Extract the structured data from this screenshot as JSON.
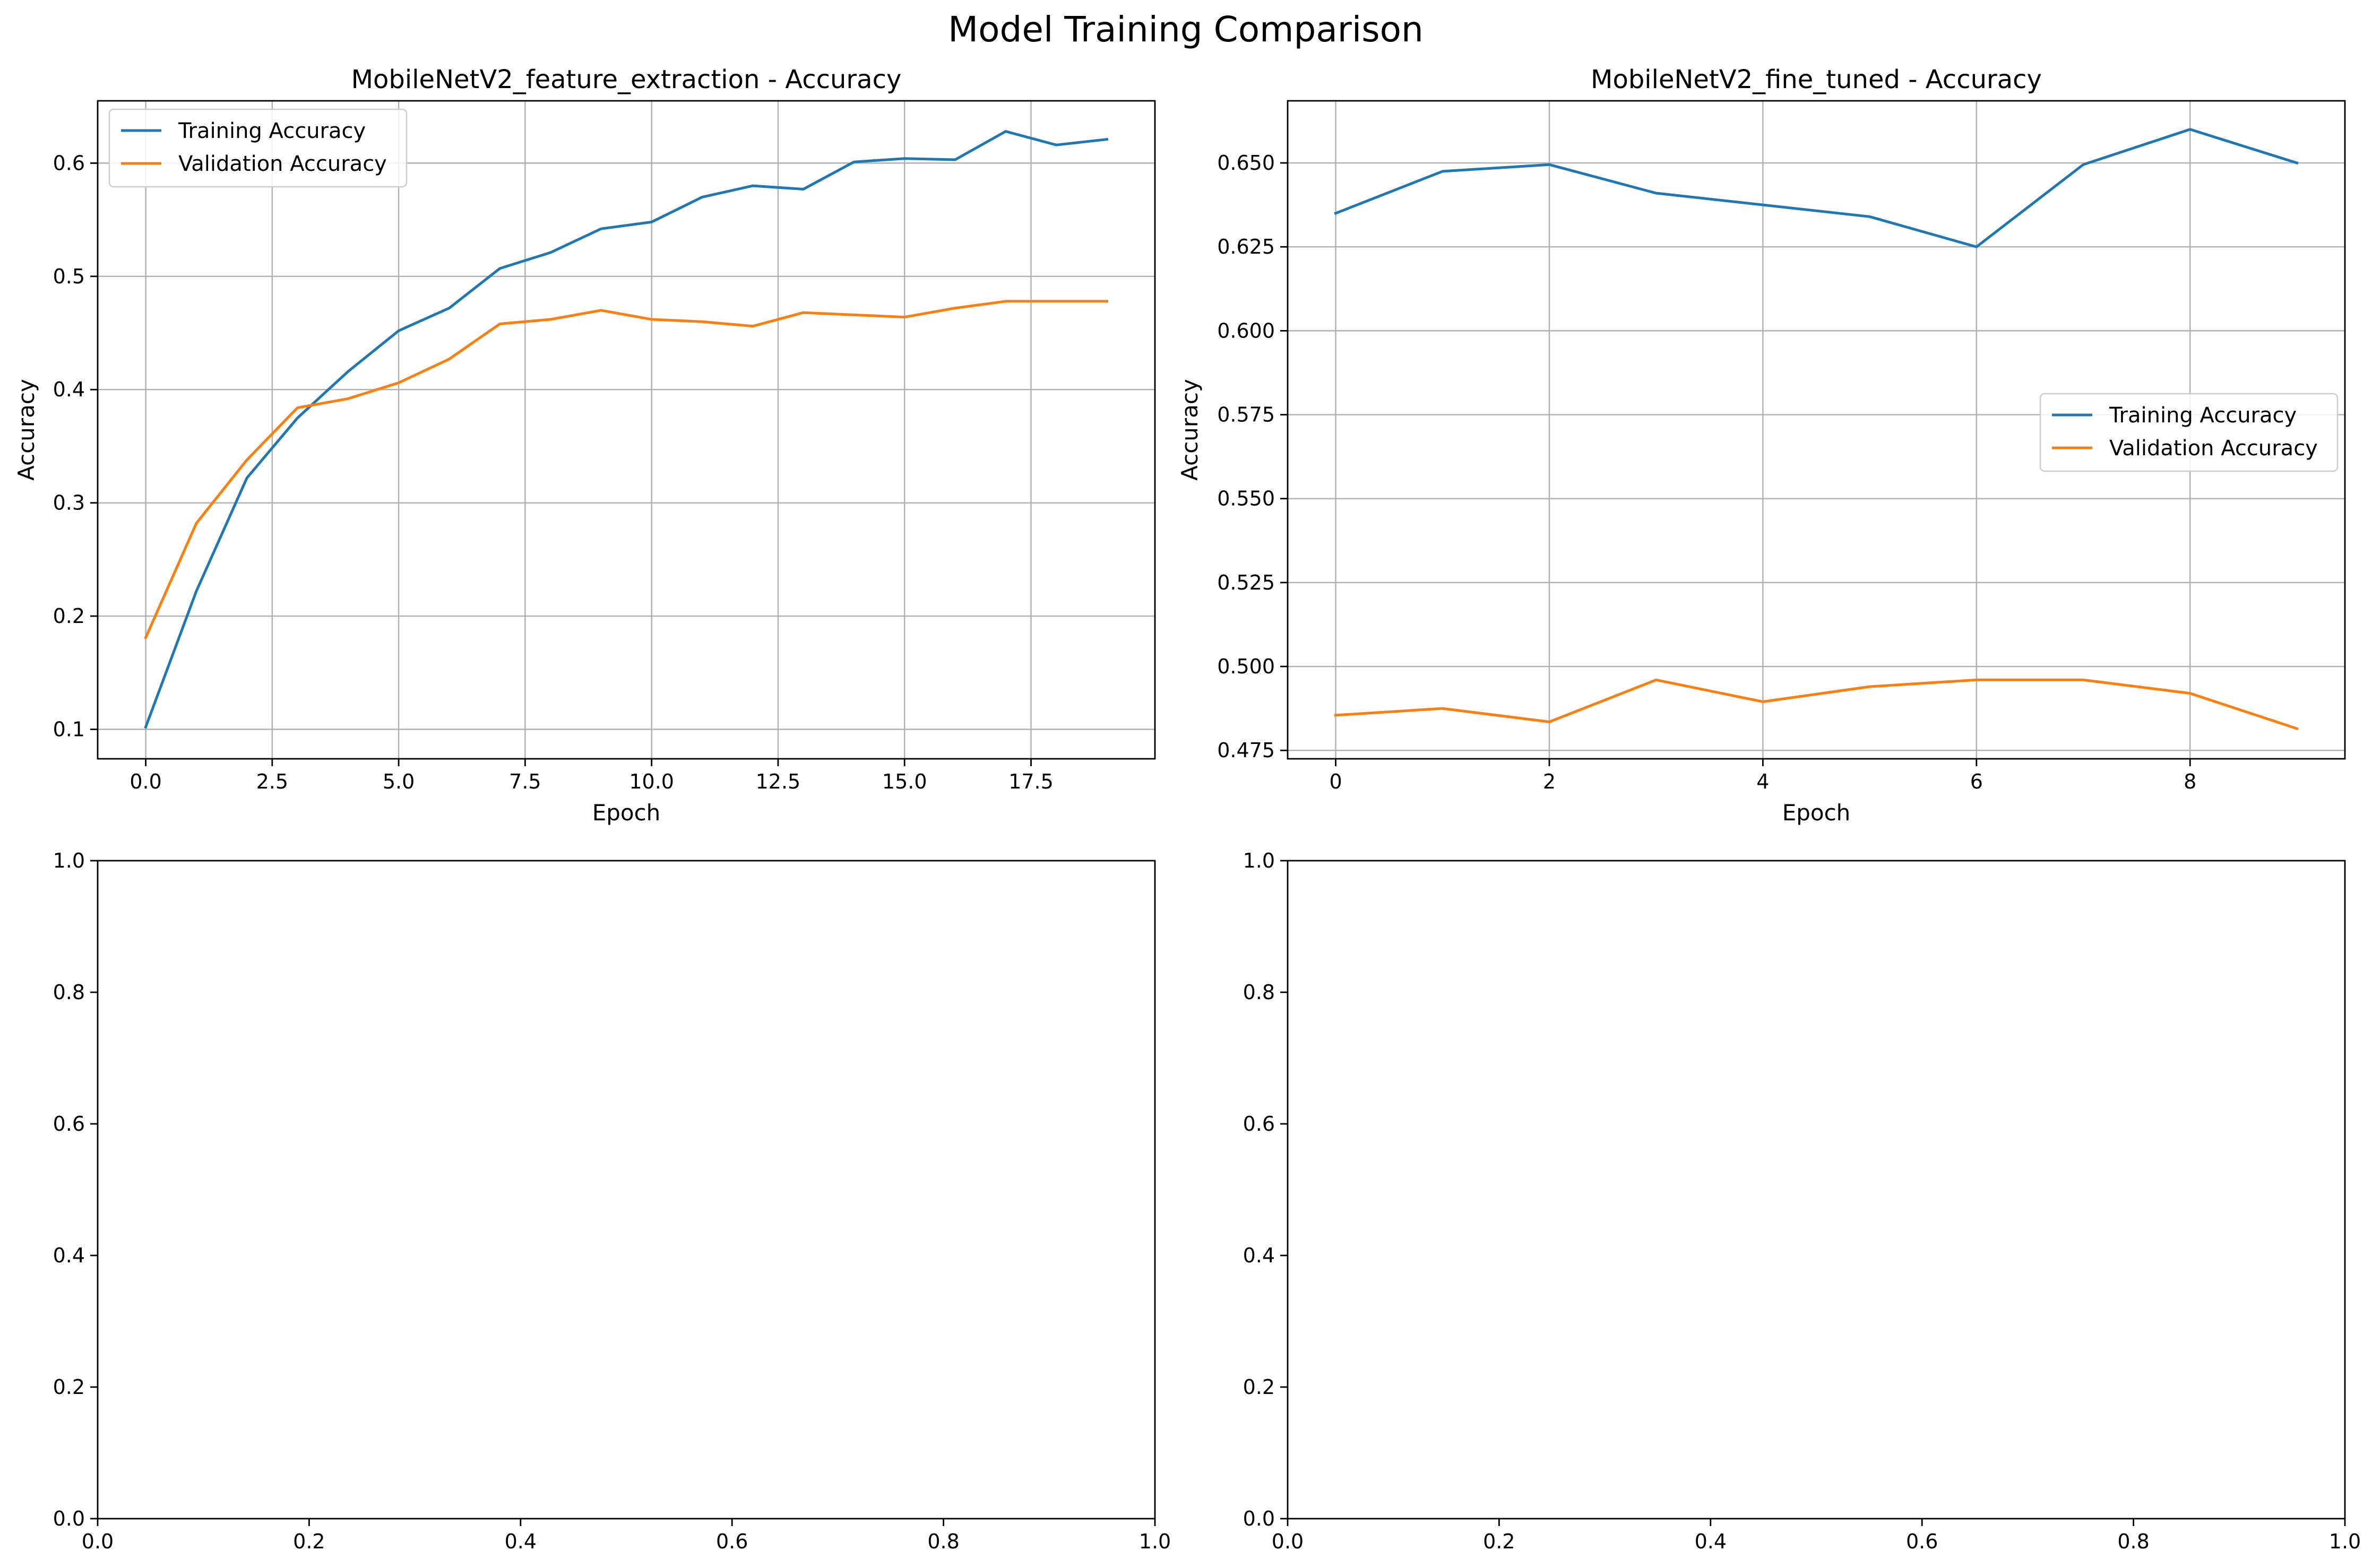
{
  "figure": {
    "title": "Model Training Comparison"
  },
  "chart_data": [
    {
      "type": "line",
      "title": "MobileNetV2_feature_extraction - Accuracy",
      "xlabel": "Epoch",
      "ylabel": "Accuracy",
      "xlim": [
        -0.95,
        19.95
      ],
      "ylim": [
        0.074,
        0.655
      ],
      "xticks": [
        0,
        2.5,
        5,
        7.5,
        10,
        12.5,
        15,
        17.5
      ],
      "xtick_labels": [
        "0.0",
        "2.5",
        "5.0",
        "7.5",
        "10.0",
        "12.5",
        "15.0",
        "17.5"
      ],
      "yticks": [
        0.1,
        0.2,
        0.3,
        0.4,
        0.5,
        0.6
      ],
      "ytick_labels": [
        "0.1",
        "0.2",
        "0.3",
        "0.4",
        "0.5",
        "0.6"
      ],
      "grid": true,
      "legend": "upper-left",
      "x": [
        0,
        1,
        2,
        3,
        4,
        5,
        6,
        7,
        8,
        9,
        10,
        11,
        12,
        13,
        14,
        15,
        16,
        17,
        18,
        19
      ],
      "series": [
        {
          "name": "Training Accuracy",
          "color": "#1f77b4",
          "values": [
            0.102,
            0.222,
            0.322,
            0.375,
            0.416,
            0.452,
            0.472,
            0.507,
            0.521,
            0.542,
            0.548,
            0.57,
            0.58,
            0.577,
            0.601,
            0.604,
            0.603,
            0.628,
            0.616,
            0.621
          ]
        },
        {
          "name": "Validation Accuracy",
          "color": "#ff7f0e",
          "values": [
            0.181,
            0.282,
            0.338,
            0.384,
            0.392,
            0.406,
            0.427,
            0.458,
            0.462,
            0.47,
            0.462,
            0.46,
            0.456,
            0.468,
            0.466,
            0.464,
            0.472,
            0.478,
            0.478,
            0.478
          ]
        }
      ]
    },
    {
      "type": "line",
      "title": "MobileNetV2_fine_tuned - Accuracy",
      "xlabel": "Epoch",
      "ylabel": "Accuracy",
      "xlim": [
        -0.45,
        9.45
      ],
      "ylim": [
        0.4725,
        0.6685
      ],
      "xticks": [
        0,
        2,
        4,
        6,
        8
      ],
      "xtick_labels": [
        "0",
        "2",
        "4",
        "6",
        "8"
      ],
      "yticks": [
        0.475,
        0.5,
        0.525,
        0.55,
        0.575,
        0.6,
        0.625,
        0.65
      ],
      "ytick_labels": [
        "0.475",
        "0.500",
        "0.525",
        "0.550",
        "0.575",
        "0.600",
        "0.625",
        "0.650"
      ],
      "grid": true,
      "legend": "center-right",
      "x": [
        0,
        1,
        2,
        3,
        4,
        5,
        6,
        7,
        8,
        9
      ],
      "series": [
        {
          "name": "Training Accuracy",
          "color": "#1f77b4",
          "values": [
            0.635,
            0.6475,
            0.6495,
            0.641,
            0.6375,
            0.634,
            0.625,
            0.6495,
            0.66,
            0.65
          ]
        },
        {
          "name": "Validation Accuracy",
          "color": "#ff7f0e",
          "values": [
            0.4855,
            0.4875,
            0.4835,
            0.496,
            0.4895,
            0.494,
            0.496,
            0.496,
            0.492,
            0.4815
          ]
        }
      ]
    },
    {
      "type": "line",
      "title": "",
      "xlabel": "",
      "ylabel": "",
      "xlim": [
        0,
        1
      ],
      "ylim": [
        0,
        1
      ],
      "xticks": [
        0,
        0.2,
        0.4,
        0.6,
        0.8,
        1
      ],
      "xtick_labels": [
        "0.0",
        "0.2",
        "0.4",
        "0.6",
        "0.8",
        "1.0"
      ],
      "yticks": [
        0,
        0.2,
        0.4,
        0.6,
        0.8,
        1
      ],
      "ytick_labels": [
        "0.0",
        "0.2",
        "0.4",
        "0.6",
        "0.8",
        "1.0"
      ],
      "grid": false,
      "series": []
    },
    {
      "type": "line",
      "title": "",
      "xlabel": "",
      "ylabel": "",
      "xlim": [
        0,
        1
      ],
      "ylim": [
        0,
        1
      ],
      "xticks": [
        0,
        0.2,
        0.4,
        0.6,
        0.8,
        1
      ],
      "xtick_labels": [
        "0.0",
        "0.2",
        "0.4",
        "0.6",
        "0.8",
        "1.0"
      ],
      "yticks": [
        0,
        0.2,
        0.4,
        0.6,
        0.8,
        1
      ],
      "ytick_labels": [
        "0.0",
        "0.2",
        "0.4",
        "0.6",
        "0.8",
        "1.0"
      ],
      "grid": false,
      "series": []
    }
  ]
}
